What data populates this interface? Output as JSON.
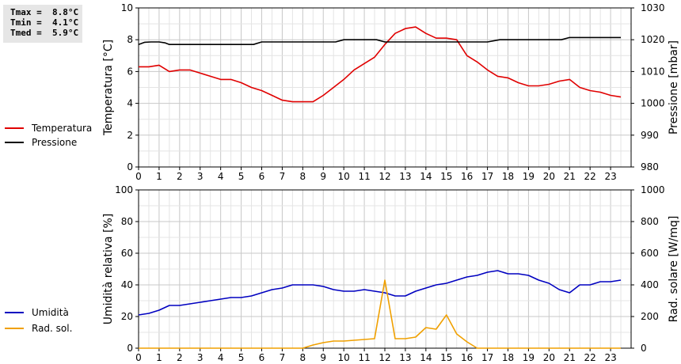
{
  "stats": {
    "tmax": "Tmax =  8.8°C",
    "tmin": "Tmin =  4.1°C",
    "tmed": "Tmed =  5.9°C"
  },
  "legend_top": [
    {
      "label": "Temperatura",
      "color": "#e00000"
    },
    {
      "label": "Pressione",
      "color": "#000000"
    }
  ],
  "legend_bottom": [
    {
      "label": "Umidità",
      "color": "#0000c0"
    },
    {
      "label": "Rad. sol.",
      "color": "#f0a000"
    }
  ],
  "chart_data": [
    {
      "type": "line",
      "ylabel": "Temperatura [°C]",
      "y2label": "Pressione [mbar]",
      "ylim": [
        0,
        10
      ],
      "y2lim": [
        980,
        1030
      ],
      "yticks": [
        0,
        2,
        4,
        6,
        8,
        10
      ],
      "y2ticks": [
        980,
        990,
        1000,
        1010,
        1020,
        1030
      ],
      "xlim": [
        0,
        24
      ],
      "xticks": [
        0,
        1,
        2,
        3,
        4,
        5,
        6,
        7,
        8,
        9,
        10,
        11,
        12,
        13,
        14,
        15,
        16,
        17,
        18,
        19,
        20,
        21,
        22,
        23
      ],
      "grid": true,
      "series": [
        {
          "name": "Temperatura",
          "axis": "left",
          "color": "#e00000",
          "x": [
            0,
            0.5,
            1,
            1.5,
            2,
            2.5,
            3,
            3.5,
            4,
            4.5,
            5,
            5.5,
            6,
            6.5,
            7,
            7.5,
            8,
            8.5,
            9,
            9.5,
            10,
            10.5,
            11,
            11.5,
            12,
            12.5,
            13,
            13.5,
            14,
            14.5,
            15,
            15.5,
            16,
            16.5,
            17,
            17.5,
            18,
            18.5,
            19,
            19.5,
            20,
            20.5,
            21,
            21.5,
            22,
            22.5,
            23,
            23.5
          ],
          "y": [
            6.3,
            6.3,
            6.4,
            6.0,
            6.1,
            6.1,
            5.9,
            5.7,
            5.5,
            5.5,
            5.3,
            5.0,
            4.8,
            4.5,
            4.2,
            4.1,
            4.1,
            4.1,
            4.5,
            5.0,
            5.5,
            6.1,
            6.5,
            6.9,
            7.7,
            8.4,
            8.7,
            8.8,
            8.4,
            8.1,
            8.1,
            8.0,
            7.0,
            6.6,
            6.1,
            5.7,
            5.6,
            5.3,
            5.1,
            5.1,
            5.2,
            5.4,
            5.5,
            5.0,
            4.8,
            4.7,
            4.5,
            4.4
          ]
        },
        {
          "name": "Pressione",
          "axis": "right",
          "color": "#000000",
          "x": [
            0,
            0.3,
            0.6,
            1.0,
            1.3,
            1.5,
            2,
            3,
            4,
            5,
            5.6,
            6.0,
            6.5,
            7,
            8,
            9,
            9.6,
            10,
            11,
            11.6,
            12,
            13,
            14,
            15,
            16,
            17,
            17.6,
            18,
            19,
            20,
            20.6,
            21,
            22,
            23,
            23.5
          ],
          "y": [
            1018.5,
            1019.2,
            1019.3,
            1019.3,
            1019.0,
            1018.5,
            1018.5,
            1018.5,
            1018.5,
            1018.5,
            1018.5,
            1019.3,
            1019.3,
            1019.3,
            1019.3,
            1019.3,
            1019.3,
            1020,
            1020,
            1020,
            1019.3,
            1019.3,
            1019.3,
            1019.3,
            1019.3,
            1019.3,
            1020,
            1020,
            1020,
            1020,
            1020,
            1020.7,
            1020.7,
            1020.7,
            1020.7
          ]
        }
      ]
    },
    {
      "type": "line",
      "ylabel": "Umidità relativa [%]",
      "y2label": "Rad. solare [W/mq]",
      "ylim": [
        0,
        100
      ],
      "y2lim": [
        0,
        1000
      ],
      "yticks": [
        0,
        20,
        40,
        60,
        80,
        100
      ],
      "y2ticks": [
        0,
        200,
        400,
        600,
        800,
        1000
      ],
      "xlim": [
        0,
        24
      ],
      "xticks": [
        0,
        1,
        2,
        3,
        4,
        5,
        6,
        7,
        8,
        9,
        10,
        11,
        12,
        13,
        14,
        15,
        16,
        17,
        18,
        19,
        20,
        21,
        22,
        23
      ],
      "grid": true,
      "series": [
        {
          "name": "Umidità",
          "axis": "left",
          "color": "#0000c0",
          "x": [
            0,
            0.5,
            1,
            1.5,
            2,
            2.5,
            3,
            3.5,
            4,
            4.5,
            5,
            5.5,
            6,
            6.5,
            7,
            7.5,
            8,
            8.5,
            9,
            9.5,
            10,
            10.5,
            11,
            11.5,
            12,
            12.5,
            13,
            13.5,
            14,
            14.5,
            15,
            15.5,
            16,
            16.5,
            17,
            17.5,
            18,
            18.5,
            19,
            19.5,
            20,
            20.5,
            21,
            21.5,
            22,
            22.5,
            23,
            23.5
          ],
          "y": [
            21,
            22,
            24,
            27,
            27,
            28,
            29,
            30,
            31,
            32,
            32,
            33,
            35,
            37,
            38,
            40,
            40,
            40,
            39,
            37,
            36,
            36,
            37,
            36,
            35,
            33,
            33,
            36,
            38,
            40,
            41,
            43,
            45,
            46,
            48,
            49,
            47,
            47,
            46,
            43,
            41,
            37,
            35,
            40,
            40,
            42,
            42,
            43
          ]
        },
        {
          "name": "Rad. sol.",
          "axis": "right",
          "color": "#f0a000",
          "x": [
            0,
            1,
            2,
            3,
            4,
            5,
            6,
            7,
            8,
            8.5,
            9,
            9.5,
            10,
            10.5,
            11,
            11.5,
            12,
            12.5,
            13,
            13.5,
            14,
            14.5,
            15,
            15.5,
            16,
            16.5,
            17,
            18,
            19,
            20,
            21,
            22,
            23,
            23.5
          ],
          "y": [
            0,
            0,
            0,
            0,
            0,
            0,
            0,
            0,
            0,
            20,
            35,
            45,
            45,
            50,
            55,
            60,
            430,
            60,
            60,
            70,
            130,
            120,
            210,
            90,
            40,
            0,
            0,
            0,
            0,
            0,
            0,
            0,
            0,
            0
          ]
        }
      ]
    }
  ]
}
